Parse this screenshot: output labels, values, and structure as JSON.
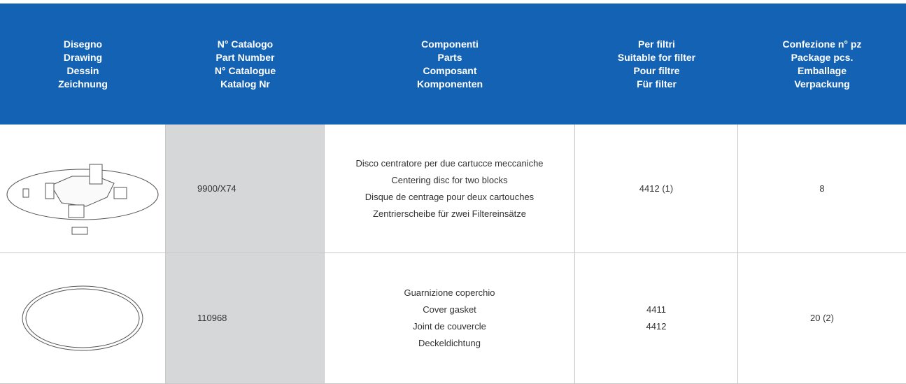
{
  "table": {
    "header": [
      [
        "Disegno",
        "Drawing",
        "Dessin",
        "Zeichnung"
      ],
      [
        "N° Catalogo",
        "Part Number",
        "N° Catalogue",
        "Katalog Nr"
      ],
      [
        "Componenti",
        "Parts",
        "Composant",
        "Komponenten"
      ],
      [
        "Per filtri",
        "Suitable for filter",
        "Pour filtre",
        "Für filter"
      ],
      [
        "Confezione n° pz",
        "Package pcs.",
        "Emballage",
        "Verpackung"
      ]
    ],
    "rows": [
      [
        [
          "9900/X74"
        ],
        [
          "Disco centratore per due cartucce meccaniche",
          "Centering disc for two blocks",
          "Disque de centrage pour deux cartouches",
          "Zentrierscheibe für zwei Filtereinsätze"
        ],
        [
          "4412 (1)"
        ],
        [
          "8"
        ]
      ],
      [
        [
          "110968"
        ],
        [
          "Guarnizione coperchio",
          "Cover gasket",
          "Joint de couvercle",
          "Deckeldichtung"
        ],
        [
          "4411",
          "4412"
        ],
        [
          "20 (2)"
        ]
      ]
    ]
  }
}
